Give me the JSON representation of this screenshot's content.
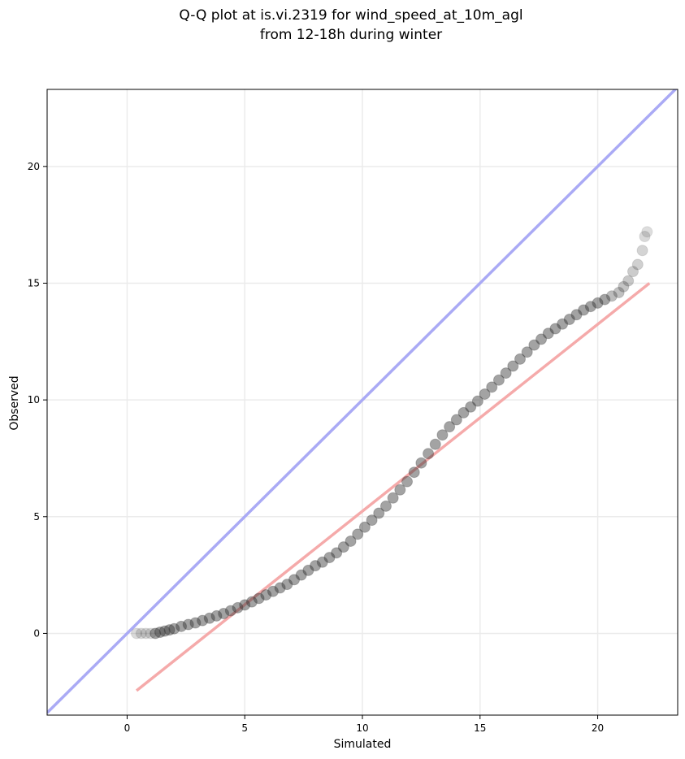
{
  "chart_data": {
    "type": "scatter",
    "title_line1": "Q-Q plot at is.vi.2319 for wind_speed_at_10m_agl",
    "title_line2": "from 12-18h during winter",
    "xlabel": "Simulated",
    "ylabel": "Observed",
    "xlim": [
      -3.4,
      23.4
    ],
    "ylim": [
      -3.5,
      23.3
    ],
    "x_ticks": [
      0,
      5,
      10,
      15,
      20
    ],
    "y_ticks": [
      0,
      5,
      10,
      15,
      20
    ],
    "grid": true,
    "identity_line": {
      "color": "#aaaaf5",
      "from": [
        -3.4,
        -3.4
      ],
      "to": [
        23.4,
        23.4
      ]
    },
    "fit_line": {
      "color": "#f5aaaa",
      "from": [
        0.4,
        -2.45
      ],
      "to": [
        22.2,
        15.0
      ]
    },
    "point_color": "#333333",
    "points": [
      [
        0.4,
        0.0
      ],
      [
        0.6,
        0.0
      ],
      [
        0.8,
        0.0
      ],
      [
        1.0,
        0.0
      ],
      [
        1.2,
        0.0
      ],
      [
        1.4,
        0.05
      ],
      [
        1.6,
        0.1
      ],
      [
        1.8,
        0.15
      ],
      [
        2.0,
        0.2
      ],
      [
        2.3,
        0.3
      ],
      [
        2.6,
        0.38
      ],
      [
        2.9,
        0.45
      ],
      [
        3.2,
        0.55
      ],
      [
        3.5,
        0.65
      ],
      [
        3.8,
        0.75
      ],
      [
        4.1,
        0.85
      ],
      [
        4.4,
        0.97
      ],
      [
        4.7,
        1.1
      ],
      [
        5.0,
        1.22
      ],
      [
        5.3,
        1.35
      ],
      [
        5.6,
        1.5
      ],
      [
        5.9,
        1.65
      ],
      [
        6.2,
        1.8
      ],
      [
        6.5,
        1.95
      ],
      [
        6.8,
        2.1
      ],
      [
        7.1,
        2.3
      ],
      [
        7.4,
        2.5
      ],
      [
        7.7,
        2.7
      ],
      [
        8.0,
        2.9
      ],
      [
        8.3,
        3.05
      ],
      [
        8.6,
        3.25
      ],
      [
        8.9,
        3.45
      ],
      [
        9.2,
        3.7
      ],
      [
        9.5,
        3.95
      ],
      [
        9.8,
        4.25
      ],
      [
        10.1,
        4.55
      ],
      [
        10.4,
        4.85
      ],
      [
        10.7,
        5.15
      ],
      [
        11.0,
        5.45
      ],
      [
        11.3,
        5.8
      ],
      [
        11.6,
        6.15
      ],
      [
        11.9,
        6.5
      ],
      [
        12.2,
        6.9
      ],
      [
        12.5,
        7.3
      ],
      [
        12.8,
        7.7
      ],
      [
        13.1,
        8.1
      ],
      [
        13.4,
        8.5
      ],
      [
        13.7,
        8.85
      ],
      [
        14.0,
        9.15
      ],
      [
        14.3,
        9.45
      ],
      [
        14.6,
        9.7
      ],
      [
        14.9,
        9.95
      ],
      [
        15.2,
        10.25
      ],
      [
        15.5,
        10.55
      ],
      [
        15.8,
        10.85
      ],
      [
        16.1,
        11.15
      ],
      [
        16.4,
        11.45
      ],
      [
        16.7,
        11.75
      ],
      [
        17.0,
        12.05
      ],
      [
        17.3,
        12.35
      ],
      [
        17.6,
        12.6
      ],
      [
        17.9,
        12.85
      ],
      [
        18.2,
        13.05
      ],
      [
        18.5,
        13.25
      ],
      [
        18.8,
        13.45
      ],
      [
        19.1,
        13.65
      ],
      [
        19.4,
        13.85
      ],
      [
        19.7,
        14.0
      ],
      [
        20.0,
        14.15
      ],
      [
        20.3,
        14.3
      ],
      [
        20.6,
        14.45
      ],
      [
        20.9,
        14.6
      ],
      [
        21.1,
        14.85
      ],
      [
        21.3,
        15.1
      ],
      [
        21.5,
        15.5
      ],
      [
        21.7,
        15.8
      ],
      [
        21.9,
        16.4
      ],
      [
        22.0,
        17.0
      ],
      [
        22.1,
        17.2
      ]
    ]
  }
}
